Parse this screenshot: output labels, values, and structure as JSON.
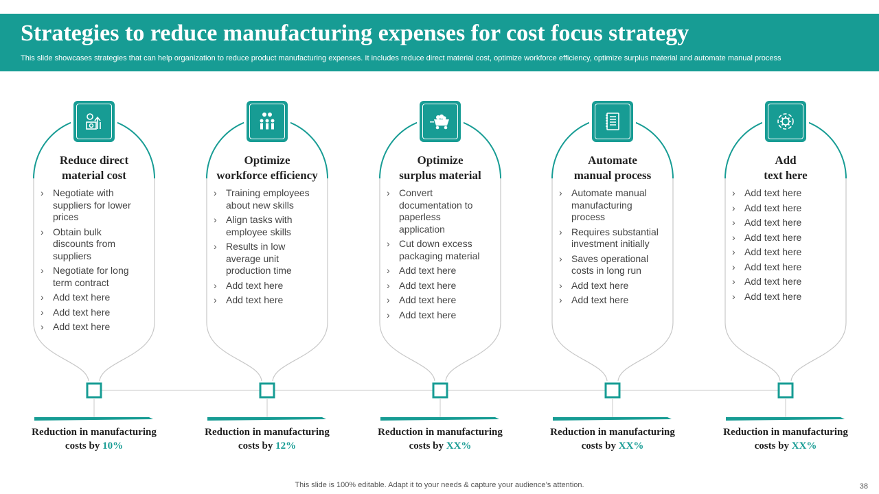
{
  "header": {
    "title": "Strategies to reduce manufacturing expenses for cost focus strategy",
    "subtitle": "This slide showcases strategies that can help organization to reduce product manufacturing expenses. It includes reduce direct material cost, optimize workforce efficiency, optimize surplus material and automate manual process"
  },
  "colors": {
    "accent": "#179c94",
    "outline": "#c8c8c8"
  },
  "columns": [
    {
      "icon": "money-growth-icon",
      "title_lines": [
        "Reduce direct",
        "material cost"
      ],
      "bullets": [
        "Negotiate with suppliers for lower prices",
        "Obtain bulk discounts from suppliers",
        "Negotiate for long term contract",
        "Add text here",
        "Add text here",
        "Add text here"
      ],
      "reduction_text": "Reduction in manufacturing",
      "reduction_prefix": "costs by",
      "reduction_value": "10%"
    },
    {
      "icon": "team-gears-icon",
      "title_lines": [
        "Optimize",
        "workforce efficiency"
      ],
      "bullets": [
        "Training employees about new skills",
        "Align tasks with employee skills",
        "Results in low average unit production time",
        "Add text here",
        "Add text here"
      ],
      "reduction_text": "Reduction in manufacturing",
      "reduction_prefix": "costs by",
      "reduction_value": "12%"
    },
    {
      "icon": "mining-cart-icon",
      "title_lines": [
        "Optimize",
        "surplus material"
      ],
      "bullets": [
        "Convert documentation to paperless application",
        "Cut down excess packaging material",
        "Add text here",
        "Add text here",
        "Add text here",
        "Add text here"
      ],
      "reduction_text": "Reduction in manufacturing",
      "reduction_prefix": "costs by",
      "reduction_value": "XX%"
    },
    {
      "icon": "checklist-icon",
      "title_lines": [
        "Automate",
        "manual process"
      ],
      "bullets": [
        "Automate manual manufacturing process",
        "Requires substantial investment initially",
        "Saves operational costs in long run",
        "Add text here",
        "Add text here"
      ],
      "reduction_text": "Reduction in manufacturing",
      "reduction_prefix": "costs by",
      "reduction_value": "XX%"
    },
    {
      "icon": "gear-cycle-icon",
      "title_lines": [
        "Add",
        "text here"
      ],
      "bullets": [
        "Add text here",
        "Add text here",
        "Add text here",
        "Add text here",
        "Add text here",
        "Add text here",
        "Add text here",
        "Add text here"
      ],
      "reduction_text": "Reduction in manufacturing",
      "reduction_prefix": "costs by",
      "reduction_value": "XX%"
    }
  ],
  "footer": {
    "note": "This slide is 100% editable. Adapt it to your needs & capture your audience’s attention.",
    "page_number": "38"
  }
}
